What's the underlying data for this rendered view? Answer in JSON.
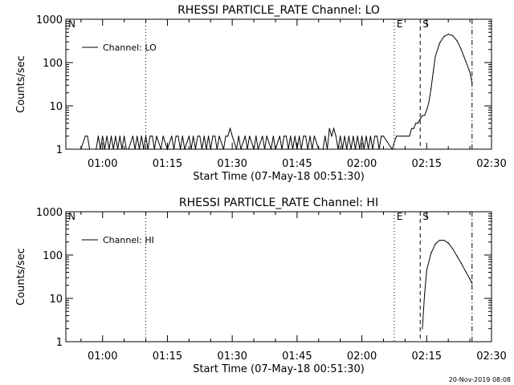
{
  "footer": {
    "timestamp": "20-Nov-2019 08:08"
  },
  "chart_data": [
    {
      "type": "line",
      "title": "RHESSI PARTICLE_RATE Channel: LO",
      "xlabel": "Start Time (07-May-18 00:51:30)",
      "ylabel": "Counts/sec",
      "y_scale": "log",
      "ylim": [
        1,
        1000
      ],
      "xlim": [
        "00:51:30",
        "02:30:00"
      ],
      "y_ticks": [
        "1",
        "10",
        "100",
        "1000"
      ],
      "x_ticks": [
        "01:00",
        "01:15",
        "01:30",
        "01:45",
        "02:00",
        "02:15",
        "02:30"
      ],
      "legend": {
        "position": "top-left",
        "entries": [
          "Channel: LO"
        ]
      },
      "markers": [
        {
          "label": "N",
          "time": "00:51:30",
          "style": "dashed"
        },
        {
          "label": "",
          "time": "01:10:00",
          "style": "dotted"
        },
        {
          "label": "E",
          "time": "02:07:30",
          "style": "dotted"
        },
        {
          "label": "S",
          "time": "02:13:30",
          "style": "dashed"
        },
        {
          "label": "",
          "time": "02:25:30",
          "style": "dash-dot"
        }
      ],
      "series": [
        {
          "name": "Channel: LO",
          "x": [
            "00:55:00",
            "00:56:00",
            "00:56:30",
            "00:57:00",
            "00:58:30",
            "00:59:00",
            "00:59:30",
            "01:00:00",
            "01:00:30",
            "01:01:00",
            "01:01:30",
            "01:02:00",
            "01:02:30",
            "01:03:00",
            "01:03:30",
            "01:04:00",
            "01:04:30",
            "01:05:00",
            "01:05:30",
            "01:06:00",
            "01:07:00",
            "01:07:30",
            "01:08:00",
            "01:08:30",
            "01:09:00",
            "01:09:30",
            "01:10:00",
            "01:10:30",
            "01:11:00",
            "01:11:30",
            "01:12:00",
            "01:12:30",
            "01:13:30",
            "01:14:00",
            "01:15:00",
            "01:16:00",
            "01:16:30",
            "01:17:00",
            "01:17:30",
            "01:18:00",
            "01:18:30",
            "01:19:00",
            "01:20:00",
            "01:20:30",
            "01:21:00",
            "01:21:30",
            "01:22:00",
            "01:22:30",
            "01:23:00",
            "01:23:30",
            "01:24:00",
            "01:24:30",
            "01:25:00",
            "01:25:30",
            "01:26:00",
            "01:26:30",
            "01:27:00",
            "01:28:00",
            "01:28:30",
            "01:29:00",
            "01:29:30",
            "01:30:00",
            "01:31:00",
            "01:31:30",
            "01:32:00",
            "01:33:00",
            "01:33:30",
            "01:34:00",
            "01:35:00",
            "01:35:30",
            "01:36:00",
            "01:37:00",
            "01:37:30",
            "01:38:00",
            "01:39:00",
            "01:39:30",
            "01:40:00",
            "01:41:00",
            "01:41:30",
            "01:42:00",
            "01:42:30",
            "01:43:00",
            "01:43:30",
            "01:44:00",
            "01:44:30",
            "01:45:00",
            "01:45:30",
            "01:46:00",
            "01:46:30",
            "01:47:00",
            "01:47:30",
            "01:48:00",
            "01:48:30",
            "01:49:00",
            "01:50:00",
            "01:50:30",
            "01:51:00",
            "01:51:30",
            "01:52:00",
            "01:52:30",
            "01:53:00",
            "01:53:30",
            "01:54:00",
            "01:54:30",
            "01:55:00",
            "01:55:30",
            "01:56:00",
            "01:56:30",
            "01:57:00",
            "01:57:30",
            "01:58:00",
            "01:58:30",
            "01:59:00",
            "01:59:30",
            "02:00:00",
            "02:00:30",
            "02:01:00",
            "02:01:30",
            "02:02:00",
            "02:02:30",
            "02:03:00",
            "02:03:30",
            "02:04:00",
            "02:04:30",
            "02:05:00",
            "02:07:00",
            "02:08:00",
            "02:09:00",
            "02:10:00",
            "02:10:30",
            "02:11:00",
            "02:11:30",
            "02:12:00",
            "02:12:30",
            "02:13:00",
            "02:13:30",
            "02:14:00",
            "02:14:30",
            "02:15:00",
            "02:15:30",
            "02:16:00",
            "02:16:30",
            "02:17:00",
            "02:18:00",
            "02:19:00",
            "02:20:00",
            "02:21:00",
            "02:22:00",
            "02:23:00",
            "02:24:00",
            "02:25:00",
            "02:25:30"
          ],
          "values": [
            1,
            2,
            2,
            1,
            1,
            2,
            1,
            2,
            1,
            2,
            1,
            2,
            1,
            2,
            1,
            2,
            1,
            2,
            1,
            1,
            2,
            1,
            2,
            1,
            2,
            1,
            2,
            1,
            2,
            2,
            1,
            2,
            1,
            2,
            1,
            2,
            1,
            2,
            2,
            1,
            2,
            1,
            2,
            1,
            2,
            1,
            2,
            2,
            1,
            2,
            1,
            2,
            1,
            2,
            2,
            1,
            2,
            1,
            2,
            2,
            3,
            2,
            1,
            2,
            1,
            2,
            1,
            2,
            1,
            2,
            1,
            2,
            1,
            2,
            1,
            2,
            1,
            2,
            1,
            2,
            2,
            1,
            2,
            1,
            2,
            1,
            2,
            1,
            2,
            2,
            1,
            2,
            1,
            2,
            1,
            1,
            1,
            2,
            1,
            3,
            2,
            3,
            2,
            1,
            2,
            1,
            2,
            1,
            2,
            1,
            2,
            1,
            2,
            1,
            2,
            1,
            2,
            1,
            2,
            1,
            2,
            2,
            1,
            2,
            2,
            1,
            2,
            2,
            2,
            2,
            2,
            3,
            3,
            4,
            4,
            5,
            6,
            6,
            8,
            12,
            25,
            60,
            140,
            280,
            400,
            450,
            420,
            320,
            200,
            110,
            60,
            33
          ]
        }
      ]
    },
    {
      "type": "line",
      "title": "RHESSI PARTICLE_RATE Channel: HI",
      "xlabel": "Start Time (07-May-18 00:51:30)",
      "ylabel": "Counts/sec",
      "y_scale": "log",
      "ylim": [
        1,
        1000
      ],
      "xlim": [
        "00:51:30",
        "02:30:00"
      ],
      "y_ticks": [
        "1",
        "10",
        "100",
        "1000"
      ],
      "x_ticks": [
        "01:00",
        "01:15",
        "01:30",
        "01:45",
        "02:00",
        "02:15",
        "02:30"
      ],
      "legend": {
        "position": "top-left",
        "entries": [
          "Channel: HI"
        ]
      },
      "markers": [
        {
          "label": "N",
          "time": "00:51:30",
          "style": "dashed"
        },
        {
          "label": "",
          "time": "01:10:00",
          "style": "dotted"
        },
        {
          "label": "E",
          "time": "02:07:30",
          "style": "dotted"
        },
        {
          "label": "S",
          "time": "02:13:30",
          "style": "dashed"
        },
        {
          "label": "",
          "time": "02:25:30",
          "style": "dash-dot"
        }
      ],
      "series": [
        {
          "name": "Channel: HI",
          "x": [
            "02:14:00",
            "02:14:30",
            "02:15:00",
            "02:16:00",
            "02:17:00",
            "02:18:00",
            "02:19:00",
            "02:20:00",
            "02:21:00",
            "02:22:00",
            "02:23:00",
            "02:24:00",
            "02:25:00",
            "02:25:30"
          ],
          "values": [
            2,
            12,
            45,
            110,
            180,
            220,
            220,
            190,
            140,
            95,
            65,
            42,
            28,
            22
          ]
        }
      ]
    }
  ]
}
